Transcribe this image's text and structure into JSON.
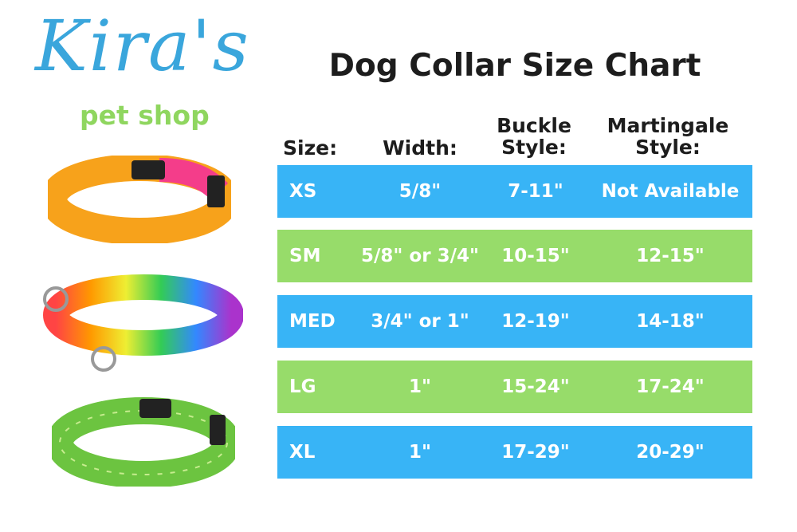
{
  "logo": {
    "script": "Kira's",
    "subtitle": "pet shop"
  },
  "title": "Dog Collar Size Chart",
  "colors": {
    "blue": "#38b4f6",
    "green": "#97dc6a",
    "logo_blue": "#3aa6dc",
    "logo_green": "#8fd65f"
  },
  "headers": [
    "Size:",
    "Width:",
    "Buckle Style:",
    "Martingale Style:"
  ],
  "headers_lines": {
    "buckle": [
      "Buckle",
      "Style:"
    ],
    "martingale": [
      "Martingale",
      "Style:"
    ]
  },
  "rows": [
    {
      "size": "XS",
      "width": "5/8\"",
      "buckle": "7-11\"",
      "martingale": "Not Available",
      "color": "blue"
    },
    {
      "size": "SM",
      "width": "5/8\" or 3/4\"",
      "buckle": "10-15\"",
      "martingale": "12-15\"",
      "color": "green"
    },
    {
      "size": "MED",
      "width": "3/4\" or 1\"",
      "buckle": "12-19\"",
      "martingale": "14-18\"",
      "color": "blue"
    },
    {
      "size": "LG",
      "width": "1\"",
      "buckle": "15-24\"",
      "martingale": "17-24\"",
      "color": "green"
    },
    {
      "size": "XL",
      "width": "1\"",
      "buckle": "17-29\"",
      "martingale": "20-29\"",
      "color": "blue"
    }
  ],
  "images": [
    "orange-pink-buckle-collar",
    "rainbow-martingale-collar",
    "green-plaid-buckle-collar"
  ]
}
